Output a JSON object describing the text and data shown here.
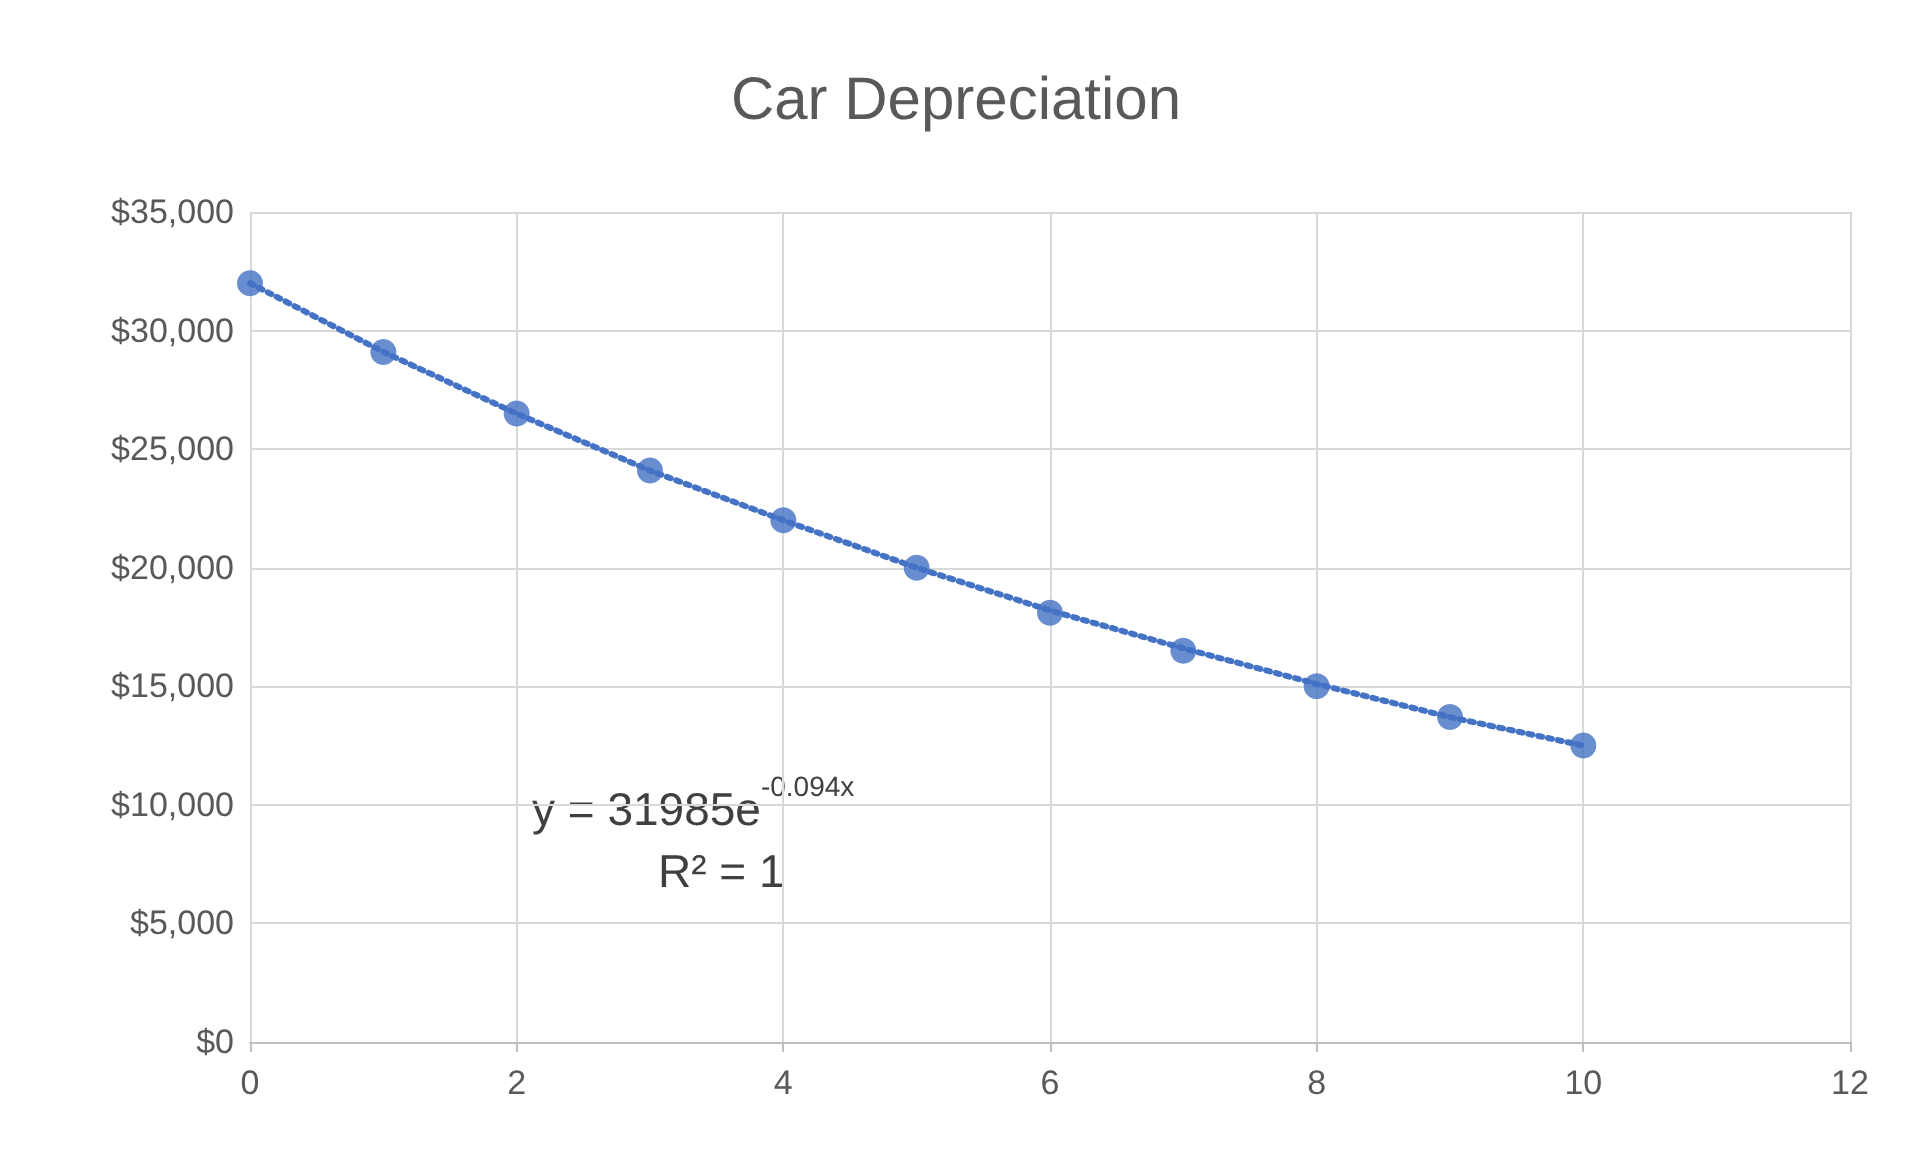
{
  "chart_data": {
    "type": "scatter",
    "title": "Car Depreciation",
    "series": [
      {
        "color": "#4472c4",
        "x": [
          0,
          1,
          2,
          3,
          4,
          5,
          6,
          7,
          8,
          9,
          10
        ],
        "values": [
          32000,
          29100,
          26500,
          24100,
          22000,
          20000,
          18100,
          16500,
          15000,
          13700,
          12500
        ],
        "marker": "circle"
      },
      {
        "type": "line",
        "color": "#4472c4",
        "line_style": "dotted",
        "marker": "none",
        "x": [
          0,
          1,
          2,
          3,
          4,
          5,
          6,
          7,
          8,
          9,
          10
        ],
        "values": [
          32000,
          29100,
          26500,
          24100,
          22000,
          20000,
          18200,
          16600,
          15100,
          13700,
          12500
        ]
      }
    ],
    "xlim": [
      0,
      12
    ],
    "xticks": [
      0,
      2,
      4,
      6,
      8,
      10,
      12
    ],
    "ylim": [
      0,
      35000
    ],
    "yticks": [
      {
        "value": 0,
        "label": "$0"
      },
      {
        "value": 5000,
        "label": "$5,000"
      },
      {
        "value": 10000,
        "label": "$10,000"
      },
      {
        "value": 15000,
        "label": "$15,000"
      },
      {
        "value": 20000,
        "label": "$20,000"
      },
      {
        "value": 25000,
        "label": "$25,000"
      },
      {
        "value": 30000,
        "label": "$30,000"
      },
      {
        "value": 35000,
        "label": "$35,000"
      }
    ],
    "grid": true,
    "annotations": [
      "y = 31985e$^{-0.094x}$",
      "R² = 1"
    ]
  }
}
